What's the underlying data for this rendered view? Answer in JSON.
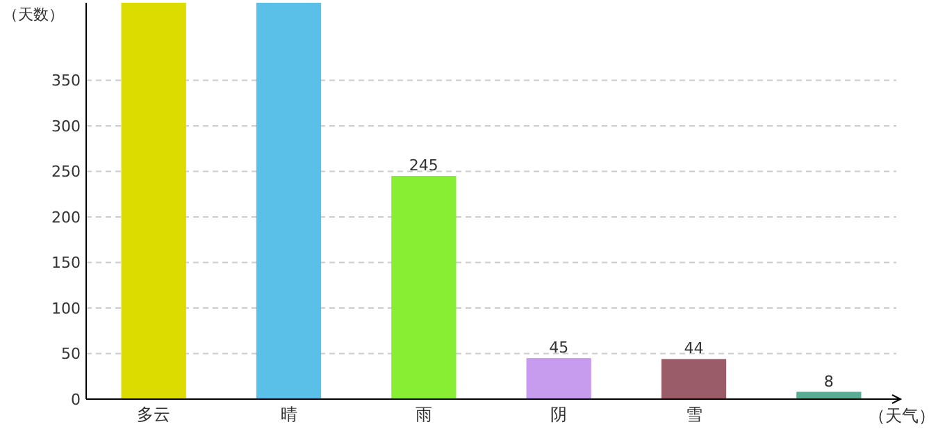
{
  "chart_data": {
    "type": "bar",
    "xlabel": "（天气）",
    "ylabel": "（天数）",
    "categories": [
      "多云",
      "晴",
      "雨",
      "阴",
      "雪",
      null
    ],
    "values": [
      435,
      435,
      245,
      45,
      44,
      8
    ],
    "colors": [
      "#dcdc00",
      "#5bc0e8",
      "#88ee33",
      "#c79cef",
      "#9b5c6a",
      "#5aac94"
    ],
    "value_labels": [
      null,
      null,
      "245",
      "45",
      "44",
      "8"
    ],
    "ylim": [
      0,
      435
    ],
    "yticks": [
      0,
      50,
      100,
      150,
      200,
      250,
      300,
      350
    ],
    "grid": "y"
  }
}
